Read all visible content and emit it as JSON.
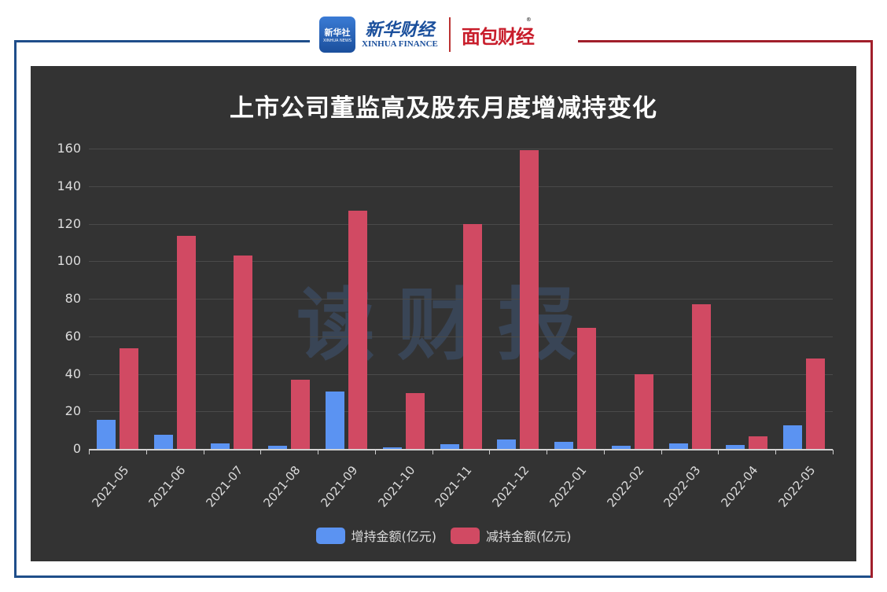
{
  "header": {
    "xinhua_icon_cn": "新华社",
    "xinhua_icon_en": "XINHUA NEWS",
    "xinhua_finance_cn": "新华财经",
    "xinhua_finance_en": "XINHUA FINANCE",
    "mianbao_logo": "面包财经",
    "registered_mark": "®"
  },
  "colors": {
    "frame_blue": "#1f4e8a",
    "frame_red": "#a11f2b",
    "panel_bg": "#333333",
    "increase": "#5b93f2",
    "decrease": "#d14a63"
  },
  "watermark": "读财报",
  "chart_data": {
    "type": "bar",
    "title": "上市公司董监高及股东月度增减持变化",
    "xlabel": "",
    "ylabel": "",
    "ylim": [
      0,
      160
    ],
    "yticks": [
      0,
      20,
      40,
      60,
      80,
      100,
      120,
      140,
      160
    ],
    "grid": true,
    "legend_position": "bottom",
    "categories": [
      "2021-05",
      "2021-06",
      "2021-07",
      "2021-08",
      "2021-09",
      "2021-10",
      "2021-11",
      "2021-12",
      "2022-01",
      "2022-02",
      "2022-03",
      "2022-04",
      "2022-05"
    ],
    "series": [
      {
        "name": "增持金额(亿元)",
        "color": "#5b93f2",
        "values": [
          15.5,
          7.5,
          3.0,
          1.5,
          30.5,
          1.0,
          2.5,
          5.0,
          3.8,
          1.8,
          2.8,
          1.9,
          12.5
        ]
      },
      {
        "name": "减持金额(亿元)",
        "color": "#d14a63",
        "values": [
          53.5,
          113.5,
          103.0,
          37.0,
          127.0,
          29.7,
          120.0,
          159.0,
          64.5,
          40.0,
          77.0,
          6.5,
          48.0
        ]
      }
    ]
  }
}
